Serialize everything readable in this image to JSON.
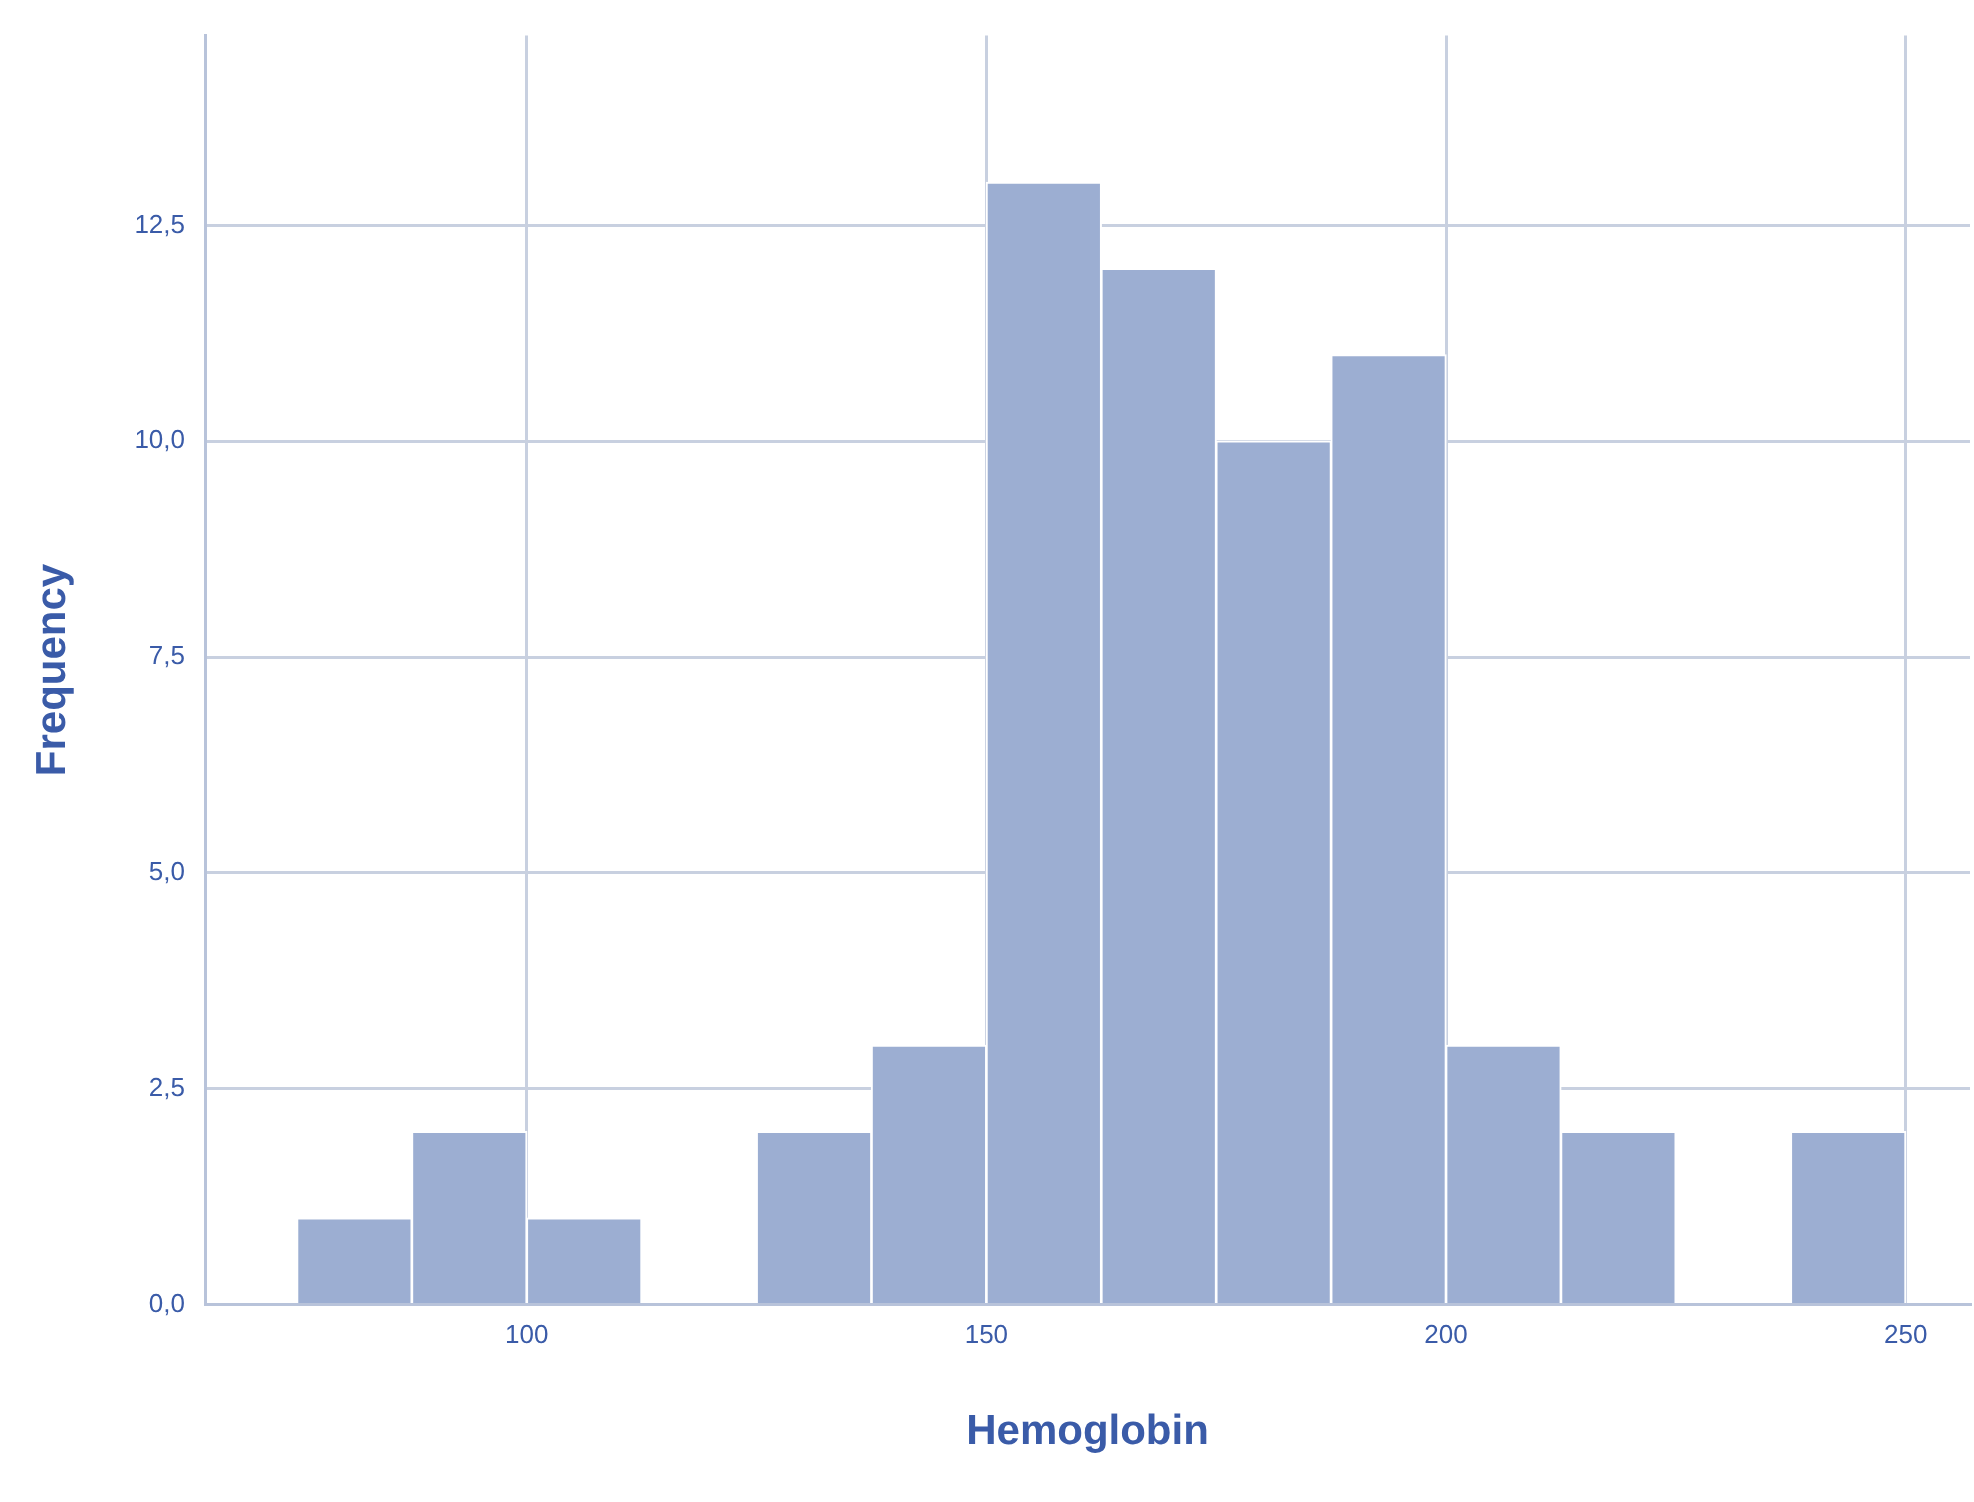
{
  "chart_data": {
    "type": "histogram",
    "xlabel": "Hemoglobin",
    "ylabel": "Frequency",
    "bins": [
      75,
      87.5,
      100,
      112.5,
      125,
      137.5,
      150,
      162.5,
      175,
      187.5,
      200,
      212.5,
      225,
      237.5,
      250
    ],
    "values": [
      1,
      2,
      1,
      0,
      2,
      3,
      13,
      12,
      10,
      11,
      3,
      2,
      0,
      2
    ],
    "color": "#9caed2",
    "xlim": [
      65,
      257
    ],
    "xticks": [
      100,
      150,
      200,
      250
    ],
    "ylim": [
      0,
      14.7
    ],
    "yticks": [
      {
        "value": 0,
        "label": "0,0"
      },
      {
        "value": 2.5,
        "label": "2,5"
      },
      {
        "value": 5,
        "label": "5,0"
      },
      {
        "value": 7.5,
        "label": "7,5"
      },
      {
        "value": 10,
        "label": "10,0"
      },
      {
        "value": 12.5,
        "label": "12,5"
      }
    ],
    "grid": true,
    "legend": false
  }
}
